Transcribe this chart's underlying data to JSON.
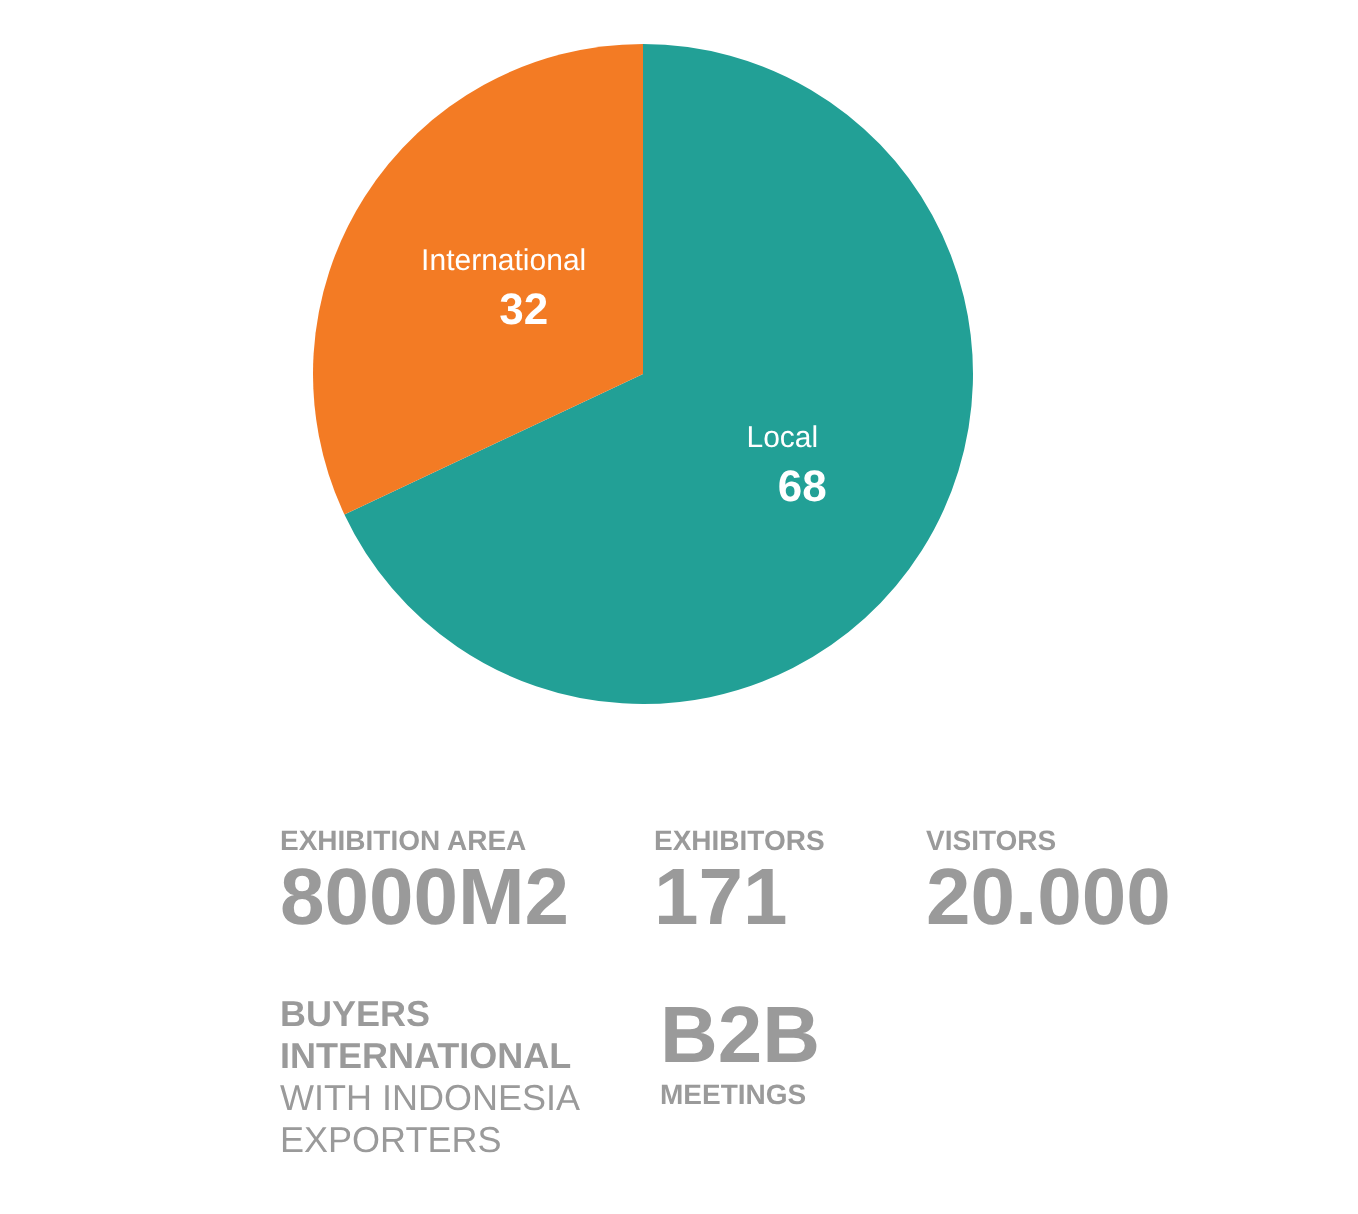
{
  "chart_data": {
    "type": "pie",
    "categories": [
      "Local",
      "International"
    ],
    "values": [
      68,
      32
    ],
    "colors": [
      "#22a096",
      "#f37b24"
    ],
    "data_labels": true,
    "annotations": [
      "EXHIBITION AREA\n8000M2",
      "EXHIBITORS\n171",
      "VISITORS\n20.000",
      "BUYERS\nINTERNATIONAL\nWITH INDONESIA\nEXPORTERS",
      "B2B\nMEETINGS"
    ]
  }
}
